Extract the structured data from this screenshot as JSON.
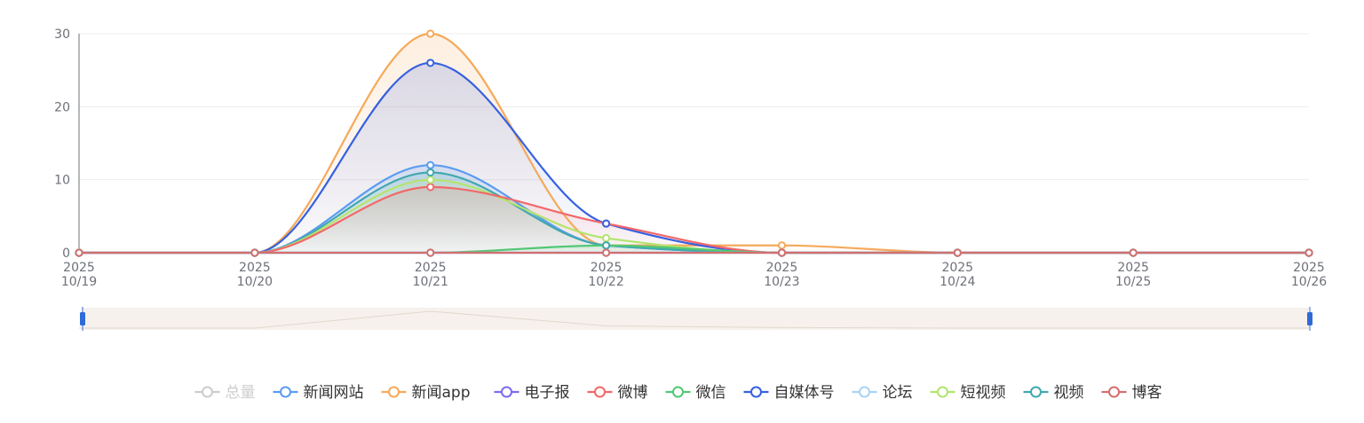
{
  "chart_data": {
    "type": "area",
    "categories": [
      "2025\n10/19",
      "2025\n10/20",
      "2025\n10/21",
      "2025\n10/22",
      "2025\n10/23",
      "2025\n10/24",
      "2025\n10/25",
      "2025\n10/26"
    ],
    "ylim": [
      0,
      30
    ],
    "y_ticks": [
      0,
      10,
      20,
      30
    ],
    "grid": true,
    "legend_position": "bottom",
    "series": [
      {
        "name": "总量",
        "color": "#cccccc",
        "visible": false,
        "values": [
          0,
          0,
          0,
          0,
          0,
          0,
          0,
          0
        ]
      },
      {
        "name": "新闻网站",
        "color": "#5b9cf0",
        "visible": true,
        "values": [
          0,
          0,
          12,
          1,
          0,
          0,
          0,
          0
        ]
      },
      {
        "name": "新闻app",
        "color": "#f5a95a",
        "visible": true,
        "values": [
          0,
          0,
          30,
          1,
          1,
          0,
          0,
          0
        ]
      },
      {
        "name": "电子报",
        "color": "#7b6cf0",
        "visible": true,
        "values": [
          0,
          0,
          0,
          0,
          0,
          0,
          0,
          0
        ]
      },
      {
        "name": "微博",
        "color": "#f2686a",
        "visible": true,
        "values": [
          0,
          0,
          9,
          4,
          0,
          0,
          0,
          0
        ]
      },
      {
        "name": "微信",
        "color": "#52c874",
        "visible": true,
        "values": [
          0,
          0,
          0,
          1,
          0,
          0,
          0,
          0
        ]
      },
      {
        "name": "自媒体号",
        "color": "#3760e0",
        "visible": true,
        "values": [
          0,
          0,
          26,
          4,
          0,
          0,
          0,
          0
        ]
      },
      {
        "name": "论坛",
        "color": "#a8d4f8",
        "visible": true,
        "values": [
          0,
          0,
          0,
          0,
          0,
          0,
          0,
          0
        ]
      },
      {
        "name": "短视频",
        "color": "#b4e46e",
        "visible": true,
        "values": [
          0,
          0,
          10,
          2,
          0,
          0,
          0,
          0
        ]
      },
      {
        "name": "视频",
        "color": "#40a8ae",
        "visible": true,
        "values": [
          0,
          0,
          11,
          1,
          0,
          0,
          0,
          0
        ]
      },
      {
        "name": "博客",
        "color": "#d2706e",
        "visible": true,
        "values": [
          0,
          0,
          0,
          0,
          0,
          0,
          0,
          0
        ]
      }
    ],
    "datazoom": {
      "start_percent": 0,
      "end_percent": 100
    }
  }
}
